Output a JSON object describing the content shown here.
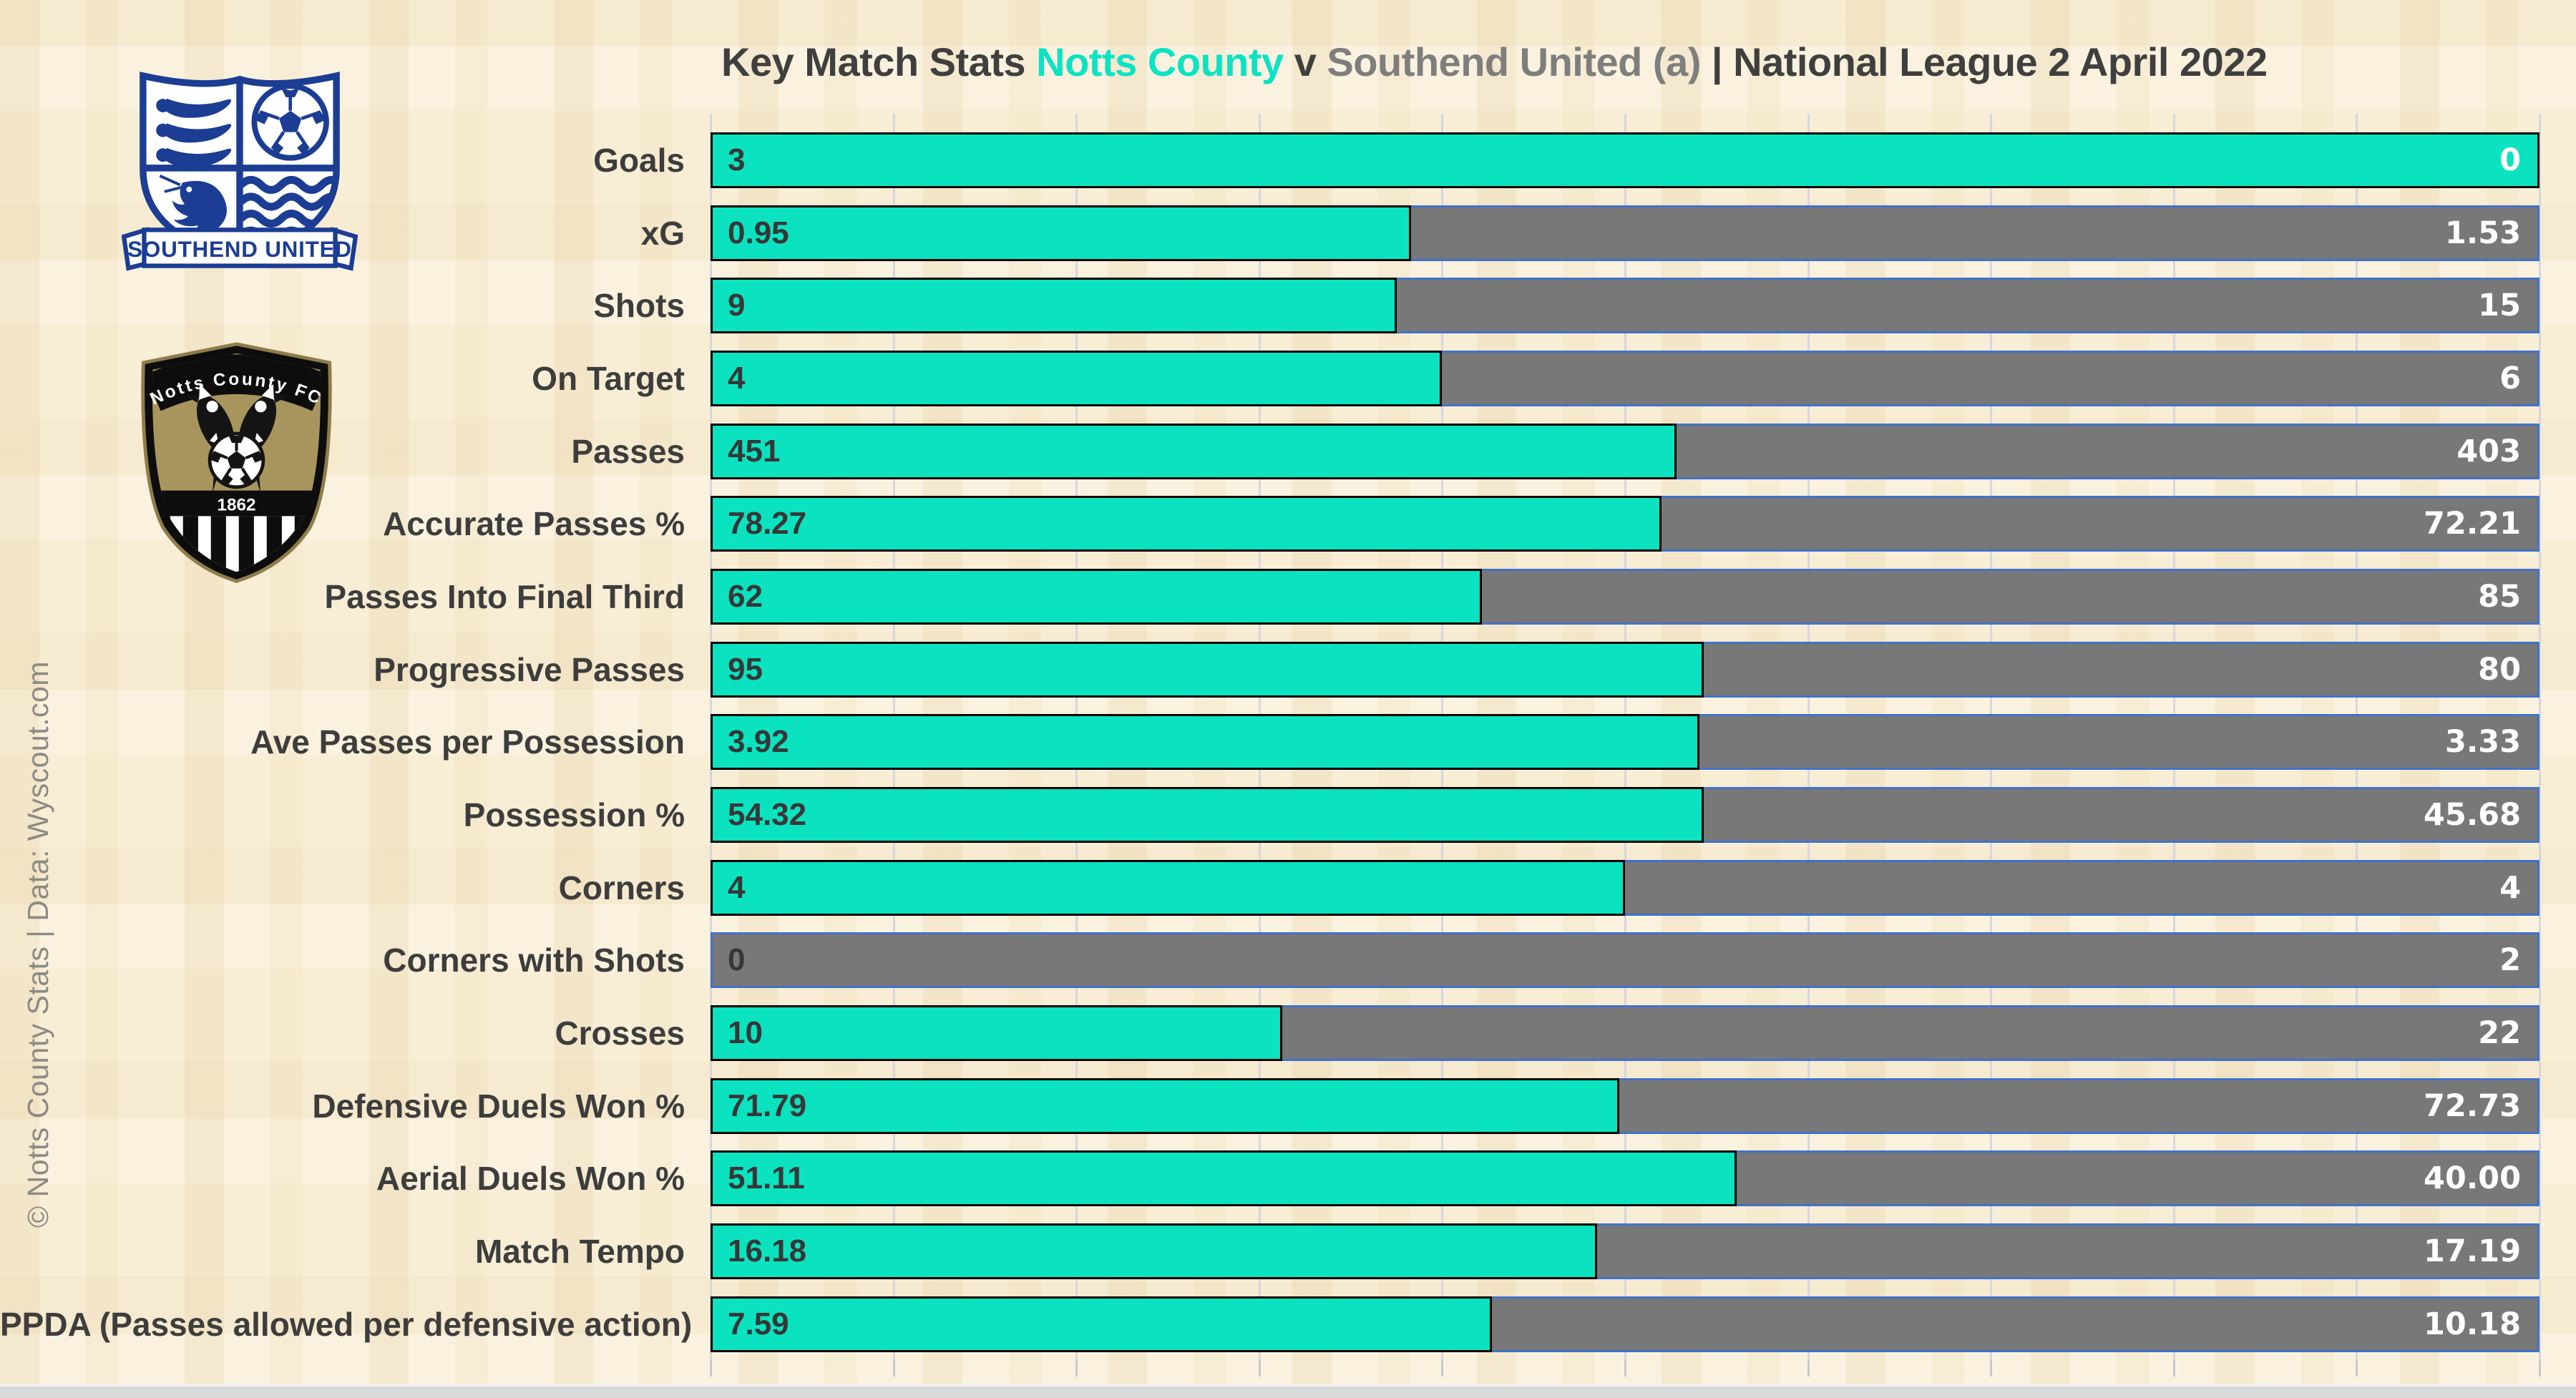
{
  "title": {
    "prefix": "Key Match Stats ",
    "home_team": "Notts County",
    "separator": " v ",
    "away_team": "Southend United (a)",
    "suffix": " | National League 2 April 2022"
  },
  "credit": "© Notts County Stats | Data: Wyscout.com",
  "badges": {
    "away": {
      "name": "Southend United crest",
      "banner": "SOUTHEND UNITED"
    },
    "home": {
      "name": "Notts County FC crest",
      "top_text": "Notts County FC",
      "year": "1862"
    }
  },
  "colors": {
    "home_bar": "#0be3c0",
    "away_bar": "#787878",
    "home_border": "#000000",
    "away_border": "#4172c8",
    "background": "#f8eed6",
    "title_text": "#3f3f3f",
    "gridline": "#d7d6de"
  },
  "chart_data": {
    "type": "bar",
    "variant": "horizontal-100pct-stacked",
    "title": "Key Match Stats Notts County v Southend United (a) | National League 2 April 2022",
    "legend_position": "none",
    "grid": "vertical, 10 divisions (0-100% share)",
    "categories": [
      "Goals",
      "xG",
      "Shots",
      "On Target",
      "Passes",
      "Accurate Passes %",
      "Passes Into Final Third",
      "Progressive Passes",
      "Ave Passes per Possession",
      "Possession %",
      "Corners",
      "Corners with Shots",
      "Crosses",
      "Defensive Duels Won %",
      "Aerial Duels Won %",
      "Match Tempo",
      "PPDA (Passes allowed per defensive action)"
    ],
    "series": [
      {
        "name": "Notts County",
        "color": "#0be3c0",
        "values": [
          3,
          0.95,
          9,
          4,
          451,
          78.27,
          62,
          95,
          3.92,
          54.32,
          4,
          0,
          10,
          71.79,
          51.11,
          16.18,
          7.59
        ],
        "labels": [
          "3",
          "0.95",
          "9",
          "4",
          "451",
          "78.27",
          "62",
          "95",
          "3.92",
          "54.32",
          "4",
          "0",
          "10",
          "71.79",
          "51.11",
          "16.18",
          "7.59"
        ]
      },
      {
        "name": "Southend United",
        "color": "#787878",
        "values": [
          0,
          1.53,
          15,
          6,
          403,
          72.21,
          85,
          80,
          3.33,
          45.68,
          4,
          2,
          22,
          72.73,
          40.0,
          17.19,
          10.18
        ],
        "labels": [
          "0",
          "1.53",
          "15",
          "6",
          "403",
          "72.21",
          "85",
          "80",
          "3.33",
          "45.68",
          "4",
          "2",
          "22",
          "72.73",
          "40.00",
          "17.19",
          "10.18"
        ]
      }
    ]
  }
}
